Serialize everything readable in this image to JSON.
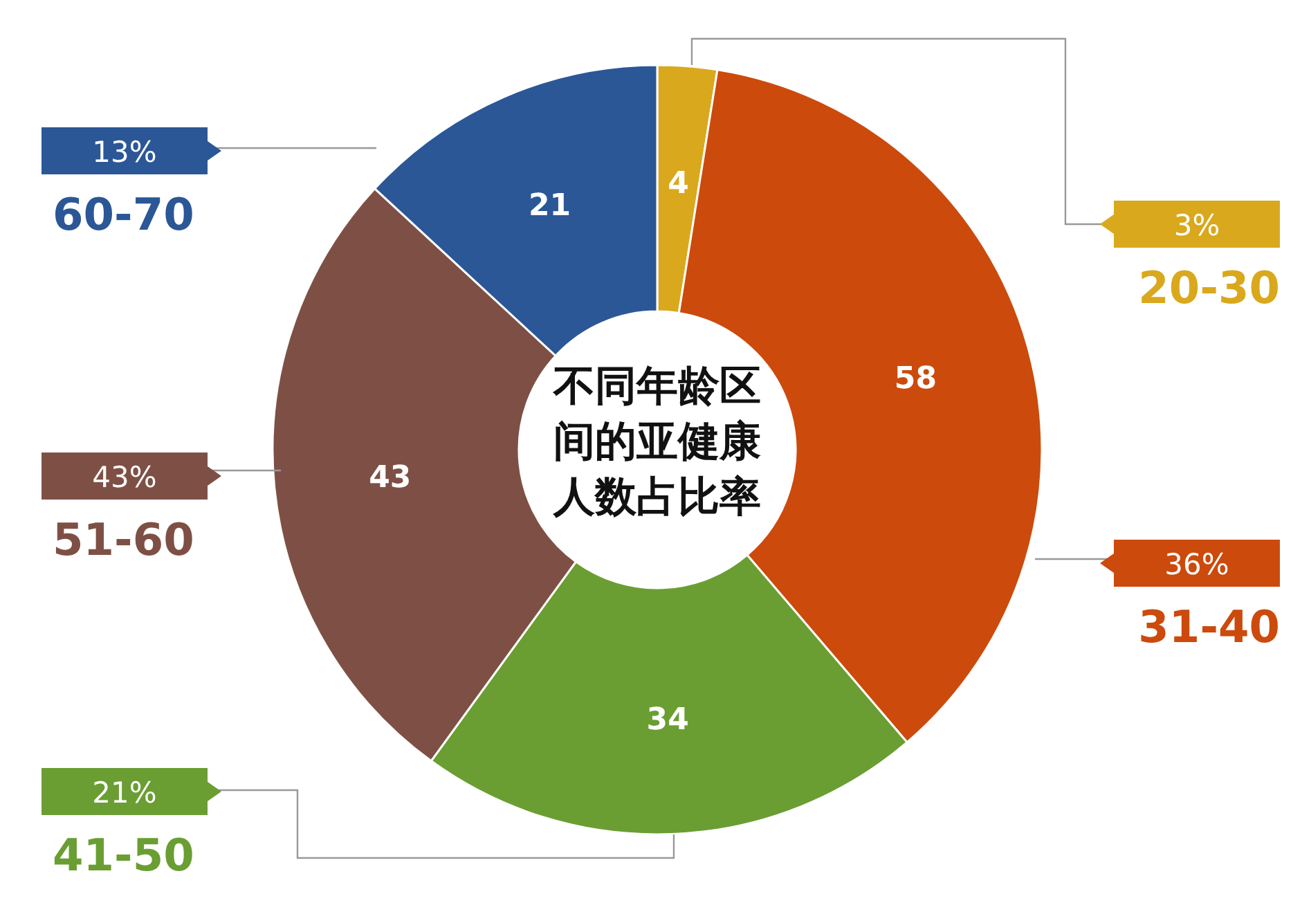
{
  "chart_data": {
    "type": "donut",
    "title": "不同年龄区间的亚健康人数占比率",
    "categories": [
      "20-30",
      "31-40",
      "41-50",
      "51-60",
      "60-70"
    ],
    "values": [
      4,
      58,
      34,
      43,
      21
    ],
    "colors": [
      "#d9a81c",
      "#cc4a0c",
      "#6a9e32",
      "#7e5045",
      "#2b5797"
    ],
    "data_labels": true,
    "legend": "left",
    "annotations": [
      {
        "text": "3%",
        "x": "20-30"
      },
      {
        "text": "36%",
        "x": "31-40"
      },
      {
        "text": "21%",
        "x": "41-50"
      },
      {
        "text": "43%",
        "x": "51-60"
      },
      {
        "text": "13%",
        "x": "60-70"
      }
    ]
  }
}
